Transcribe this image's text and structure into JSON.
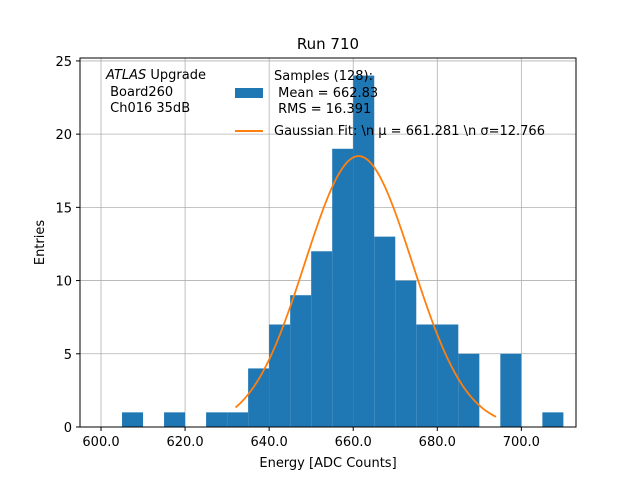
{
  "chart_data": {
    "type": "bar",
    "title": "Run 710",
    "xlabel": "Energy [ADC Counts]",
    "ylabel": "Entries",
    "xlim": [
      595,
      713
    ],
    "ylim": [
      0,
      25.2
    ],
    "grid": true,
    "xticks": [
      600,
      620,
      640,
      660,
      680,
      700
    ],
    "xtick_labels": [
      "600.0",
      "620.0",
      "640.0",
      "660.0",
      "680.0",
      "700.0"
    ],
    "yticks": [
      0,
      5,
      10,
      15,
      20,
      25
    ],
    "ytick_labels": [
      "0",
      "5",
      "10",
      "15",
      "20",
      "25"
    ],
    "bin_edges": [
      605,
      610,
      615,
      620,
      625,
      630,
      635,
      640,
      645,
      650,
      655,
      660,
      665,
      670,
      675,
      680,
      685,
      690,
      695,
      700,
      705,
      710
    ],
    "counts": [
      1,
      0,
      1,
      0,
      1,
      1,
      4,
      7,
      9,
      12,
      19,
      24,
      13,
      10,
      7,
      7,
      5,
      0,
      5,
      0,
      1
    ],
    "hist_color": "#1f77b4",
    "fit_color": "#ff7f0e",
    "fit": {
      "amplitude": 18.5,
      "mean": 661.281,
      "sigma": 12.766,
      "x_range": [
        632,
        694
      ]
    },
    "annotation_lines": [
      {
        "italic": "ATLAS",
        "rest": " Upgrade"
      },
      {
        "italic": "",
        "rest": " Board260"
      },
      {
        "italic": "",
        "rest": " Ch016 35dB"
      }
    ],
    "legend": {
      "location": "top-center",
      "histogram_lines": [
        "Samples (128):",
        " Mean = 662.83",
        " RMS = 16.391"
      ],
      "fit_label": "Gaussian Fit: \\n μ = 661.281 \\n σ=12.766"
    }
  }
}
